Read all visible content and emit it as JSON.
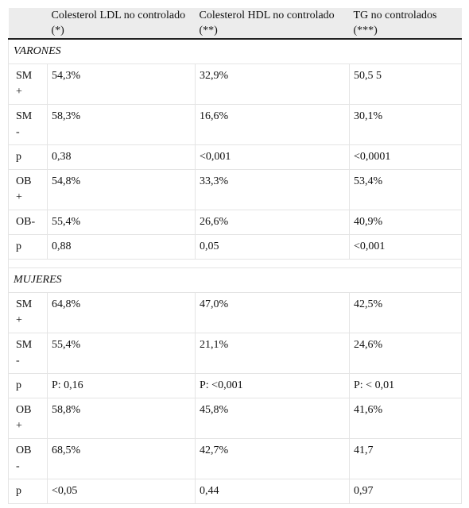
{
  "table": {
    "header": [
      "Colesterol LDL no controlado (*)",
      "Colesterol HDL no controlado (**)",
      "TG no controlados (***)"
    ],
    "sections": [
      {
        "title": "VARONES",
        "rows": [
          [
            "SM +",
            "54,3%",
            "32,9%",
            "50,5 5"
          ],
          [
            "SM -",
            "58,3%",
            "16,6%",
            "30,1%"
          ],
          [
            "p",
            "0,38",
            "<0,001",
            "<0,0001"
          ],
          [
            "OB +",
            "54,8%",
            "33,3%",
            "53,4%"
          ],
          [
            "OB-",
            "55,4%",
            "26,6%",
            "40,9%"
          ],
          [
            "p",
            "0,88",
            "0,05",
            "<0,001"
          ]
        ]
      },
      {
        "title": "MUJERES",
        "rows": [
          [
            "SM +",
            "64,8%",
            "47,0%",
            "42,5%"
          ],
          [
            "SM -",
            "55,4%",
            "21,1%",
            "24,6%"
          ],
          [
            "p",
            "P: 0,16",
            "P: <0,001",
            "P: < 0,01"
          ],
          [
            "OB +",
            "58,8%",
            "45,8%",
            "41,6%"
          ],
          [
            "OB -",
            "68,5%",
            "42,7%",
            "41,7"
          ],
          [
            "p",
            "<0,05",
            "0,44",
            "0,97"
          ]
        ]
      }
    ]
  }
}
